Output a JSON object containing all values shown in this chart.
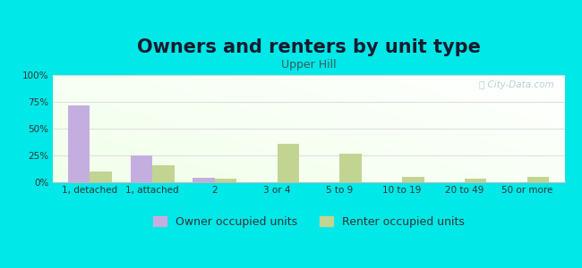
{
  "title": "Owners and renters by unit type",
  "subtitle": "Upper Hill",
  "categories": [
    "1, detached",
    "1, attached",
    "2",
    "3 or 4",
    "5 to 9",
    "10 to 19",
    "20 to 49",
    "50 or more"
  ],
  "owner_values": [
    72,
    25,
    4,
    0,
    0,
    0,
    0,
    0
  ],
  "renter_values": [
    10,
    16,
    3,
    36,
    27,
    5,
    3,
    5
  ],
  "owner_color": "#c4aee0",
  "renter_color": "#c2d492",
  "background_color": "#00e8e8",
  "ylim": [
    0,
    100
  ],
  "yticks": [
    0,
    25,
    50,
    75,
    100
  ],
  "ytick_labels": [
    "0%",
    "25%",
    "50%",
    "75%",
    "100%"
  ],
  "legend_owner": "Owner occupied units",
  "legend_renter": "Renter occupied units",
  "title_fontsize": 15,
  "subtitle_fontsize": 9,
  "tick_fontsize": 7.5,
  "legend_fontsize": 9,
  "bar_width": 0.35,
  "title_color": "#1a1a2e",
  "subtitle_color": "#3a5a5a",
  "watermark_color": "#aac8c8",
  "grid_color": "#dddddd"
}
